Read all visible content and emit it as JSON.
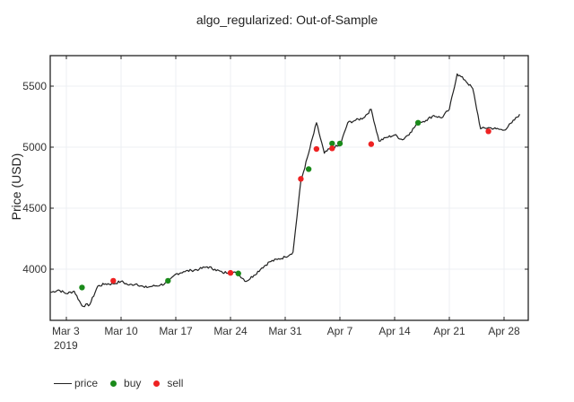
{
  "chart_data": {
    "type": "line",
    "title": "algo_regularized: Out-of-Sample",
    "xlabel": "",
    "ylabel": "Price (USD)",
    "ylim": [
      3600,
      5750
    ],
    "xlim": [
      "2019-03-01",
      "2019-05-01"
    ],
    "grid": true,
    "legend_position": "bottom-left",
    "x_ticks": [
      "Mar 3",
      "Mar 10",
      "Mar 17",
      "Mar 24",
      "Mar 31",
      "Apr 7",
      "Apr 14",
      "Apr 21",
      "Apr 28"
    ],
    "x_tick_sublabel": "2019",
    "y_ticks": [
      4000,
      4500,
      5000,
      5500
    ],
    "series": [
      {
        "name": "price",
        "color": "#222222",
        "x": [
          "03-01",
          "03-02",
          "03-03",
          "03-04",
          "03-05",
          "03-06",
          "03-07",
          "03-08",
          "03-09",
          "03-10",
          "03-11",
          "03-12",
          "03-13",
          "03-14",
          "03-15",
          "03-16",
          "03-17",
          "03-18",
          "03-19",
          "03-20",
          "03-21",
          "03-22",
          "03-23",
          "03-24",
          "03-25",
          "03-26",
          "03-27",
          "03-28",
          "03-29",
          "03-30",
          "03-31",
          "04-01",
          "04-02",
          "04-03",
          "04-04",
          "04-05",
          "04-06",
          "04-07",
          "04-08",
          "04-09",
          "04-10",
          "04-11",
          "04-12",
          "04-13",
          "04-14",
          "04-15",
          "04-16",
          "04-17",
          "04-18",
          "04-19",
          "04-20",
          "04-21",
          "04-22",
          "04-23",
          "04-24",
          "04-25",
          "04-26",
          "04-27",
          "04-28",
          "04-29",
          "04-30"
        ],
        "values": [
          3810,
          3830,
          3800,
          3820,
          3700,
          3710,
          3860,
          3880,
          3880,
          3900,
          3870,
          3880,
          3850,
          3860,
          3870,
          3890,
          3960,
          3980,
          3990,
          4000,
          4020,
          4000,
          3970,
          3980,
          3960,
          3900,
          3950,
          4010,
          4060,
          4080,
          4100,
          4140,
          4720,
          4950,
          5200,
          4950,
          5000,
          5010,
          5200,
          5220,
          5240,
          5310,
          5050,
          5080,
          5100,
          5060,
          5120,
          5200,
          5220,
          5260,
          5240,
          5310,
          5600,
          5550,
          5480,
          5150,
          5160,
          5150,
          5140,
          5200,
          5270
        ]
      }
    ],
    "buy_points": [
      {
        "date": "03-05",
        "price": 3850
      },
      {
        "date": "03-16",
        "price": 3905
      },
      {
        "date": "03-25",
        "price": 3965
      },
      {
        "date": "04-03",
        "price": 4820
      },
      {
        "date": "04-06",
        "price": 5030
      },
      {
        "date": "04-07",
        "price": 5030
      },
      {
        "date": "04-17",
        "price": 5200
      }
    ],
    "sell_points": [
      {
        "date": "03-09",
        "price": 3905
      },
      {
        "date": "03-24",
        "price": 3970
      },
      {
        "date": "04-02",
        "price": 4740
      },
      {
        "date": "04-04",
        "price": 4985
      },
      {
        "date": "04-06",
        "price": 4990
      },
      {
        "date": "04-11",
        "price": 5025
      },
      {
        "date": "04-26",
        "price": 5130
      }
    ],
    "legend": [
      {
        "label": "price",
        "type": "line",
        "color": "#222222"
      },
      {
        "label": "buy",
        "type": "marker",
        "color": "#1a8a1a"
      },
      {
        "label": "sell",
        "type": "marker",
        "color": "#ee2222"
      }
    ]
  }
}
